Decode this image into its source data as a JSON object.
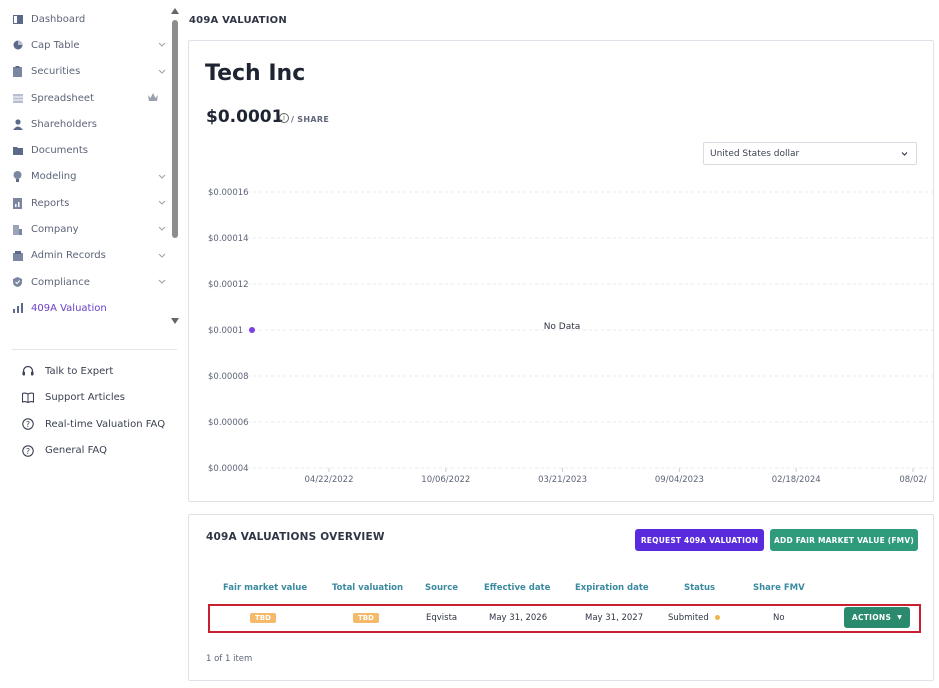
{
  "sidebar": {
    "items": [
      {
        "label": "Dashboard",
        "icon": "dashboard-icon",
        "chevron": false
      },
      {
        "label": "Cap Table",
        "icon": "pie-chart-icon",
        "chevron": true
      },
      {
        "label": "Securities",
        "icon": "clipboard-icon",
        "chevron": true
      },
      {
        "label": "Spreadsheet",
        "icon": "spreadsheet-icon",
        "chevron": false,
        "crown": true
      },
      {
        "label": "Shareholders",
        "icon": "user-icon",
        "chevron": false
      },
      {
        "label": "Documents",
        "icon": "folder-icon",
        "chevron": false
      },
      {
        "label": "Modeling",
        "icon": "lightbulb-icon",
        "chevron": true
      },
      {
        "label": "Reports",
        "icon": "report-icon",
        "chevron": true
      },
      {
        "label": "Company",
        "icon": "building-icon",
        "chevron": true
      },
      {
        "label": "Admin Records",
        "icon": "records-icon",
        "chevron": true
      },
      {
        "label": "Compliance",
        "icon": "shield-check-icon",
        "chevron": true
      },
      {
        "label": "409A Valuation",
        "icon": "bar-chart-icon",
        "chevron": false,
        "active": true
      }
    ],
    "help": [
      {
        "label": "Talk to Expert",
        "icon": "headset-icon"
      },
      {
        "label": "Support Articles",
        "icon": "book-icon"
      },
      {
        "label": "Real-time Valuation FAQ",
        "icon": "question-circle-icon"
      },
      {
        "label": "General FAQ",
        "icon": "question-circle-icon"
      }
    ]
  },
  "header": {
    "page_title": "409A VALUATION"
  },
  "valuation": {
    "company": "Tech Inc",
    "price": "$0.0001",
    "per_share": "/ SHARE",
    "currency": "United States dollar"
  },
  "chart_data": {
    "type": "line",
    "y_ticks": [
      "$0.00016",
      "$0.00014",
      "$0.00012",
      "$0.0001",
      "$0.00008",
      "$0.00006",
      "$0.00004"
    ],
    "x_ticks": [
      "04/22/2022",
      "10/06/2022",
      "03/21/2023",
      "09/04/2023",
      "02/18/2024",
      "08/02/"
    ],
    "ylim": [
      4e-05,
      0.00016
    ],
    "no_data_label": "No Data",
    "series": [
      {
        "points": [
          {
            "x": "",
            "y": 0.0001
          }
        ]
      }
    ],
    "grid": true,
    "colors": {
      "point": "#7b3fe4"
    }
  },
  "overview": {
    "title": "409A VALUATIONS OVERVIEW",
    "request_button": "REQUEST 409A VALUATION",
    "fmv_button": "ADD FAIR MARKET VALUE (FMV)",
    "columns": [
      "Fair market value",
      "Total valuation",
      "Source",
      "Effective date",
      "Expiration date",
      "Status",
      "Share FMV"
    ],
    "row": {
      "fair_market_value": "TBD",
      "total_valuation": "TBD",
      "source": "Eqvista",
      "effective_date": "May 31, 2026",
      "expiration_date": "May 31, 2027",
      "status": "Submited",
      "share_fmv": "No",
      "actions": "ACTIONS"
    },
    "pager": "1 of 1 item"
  }
}
